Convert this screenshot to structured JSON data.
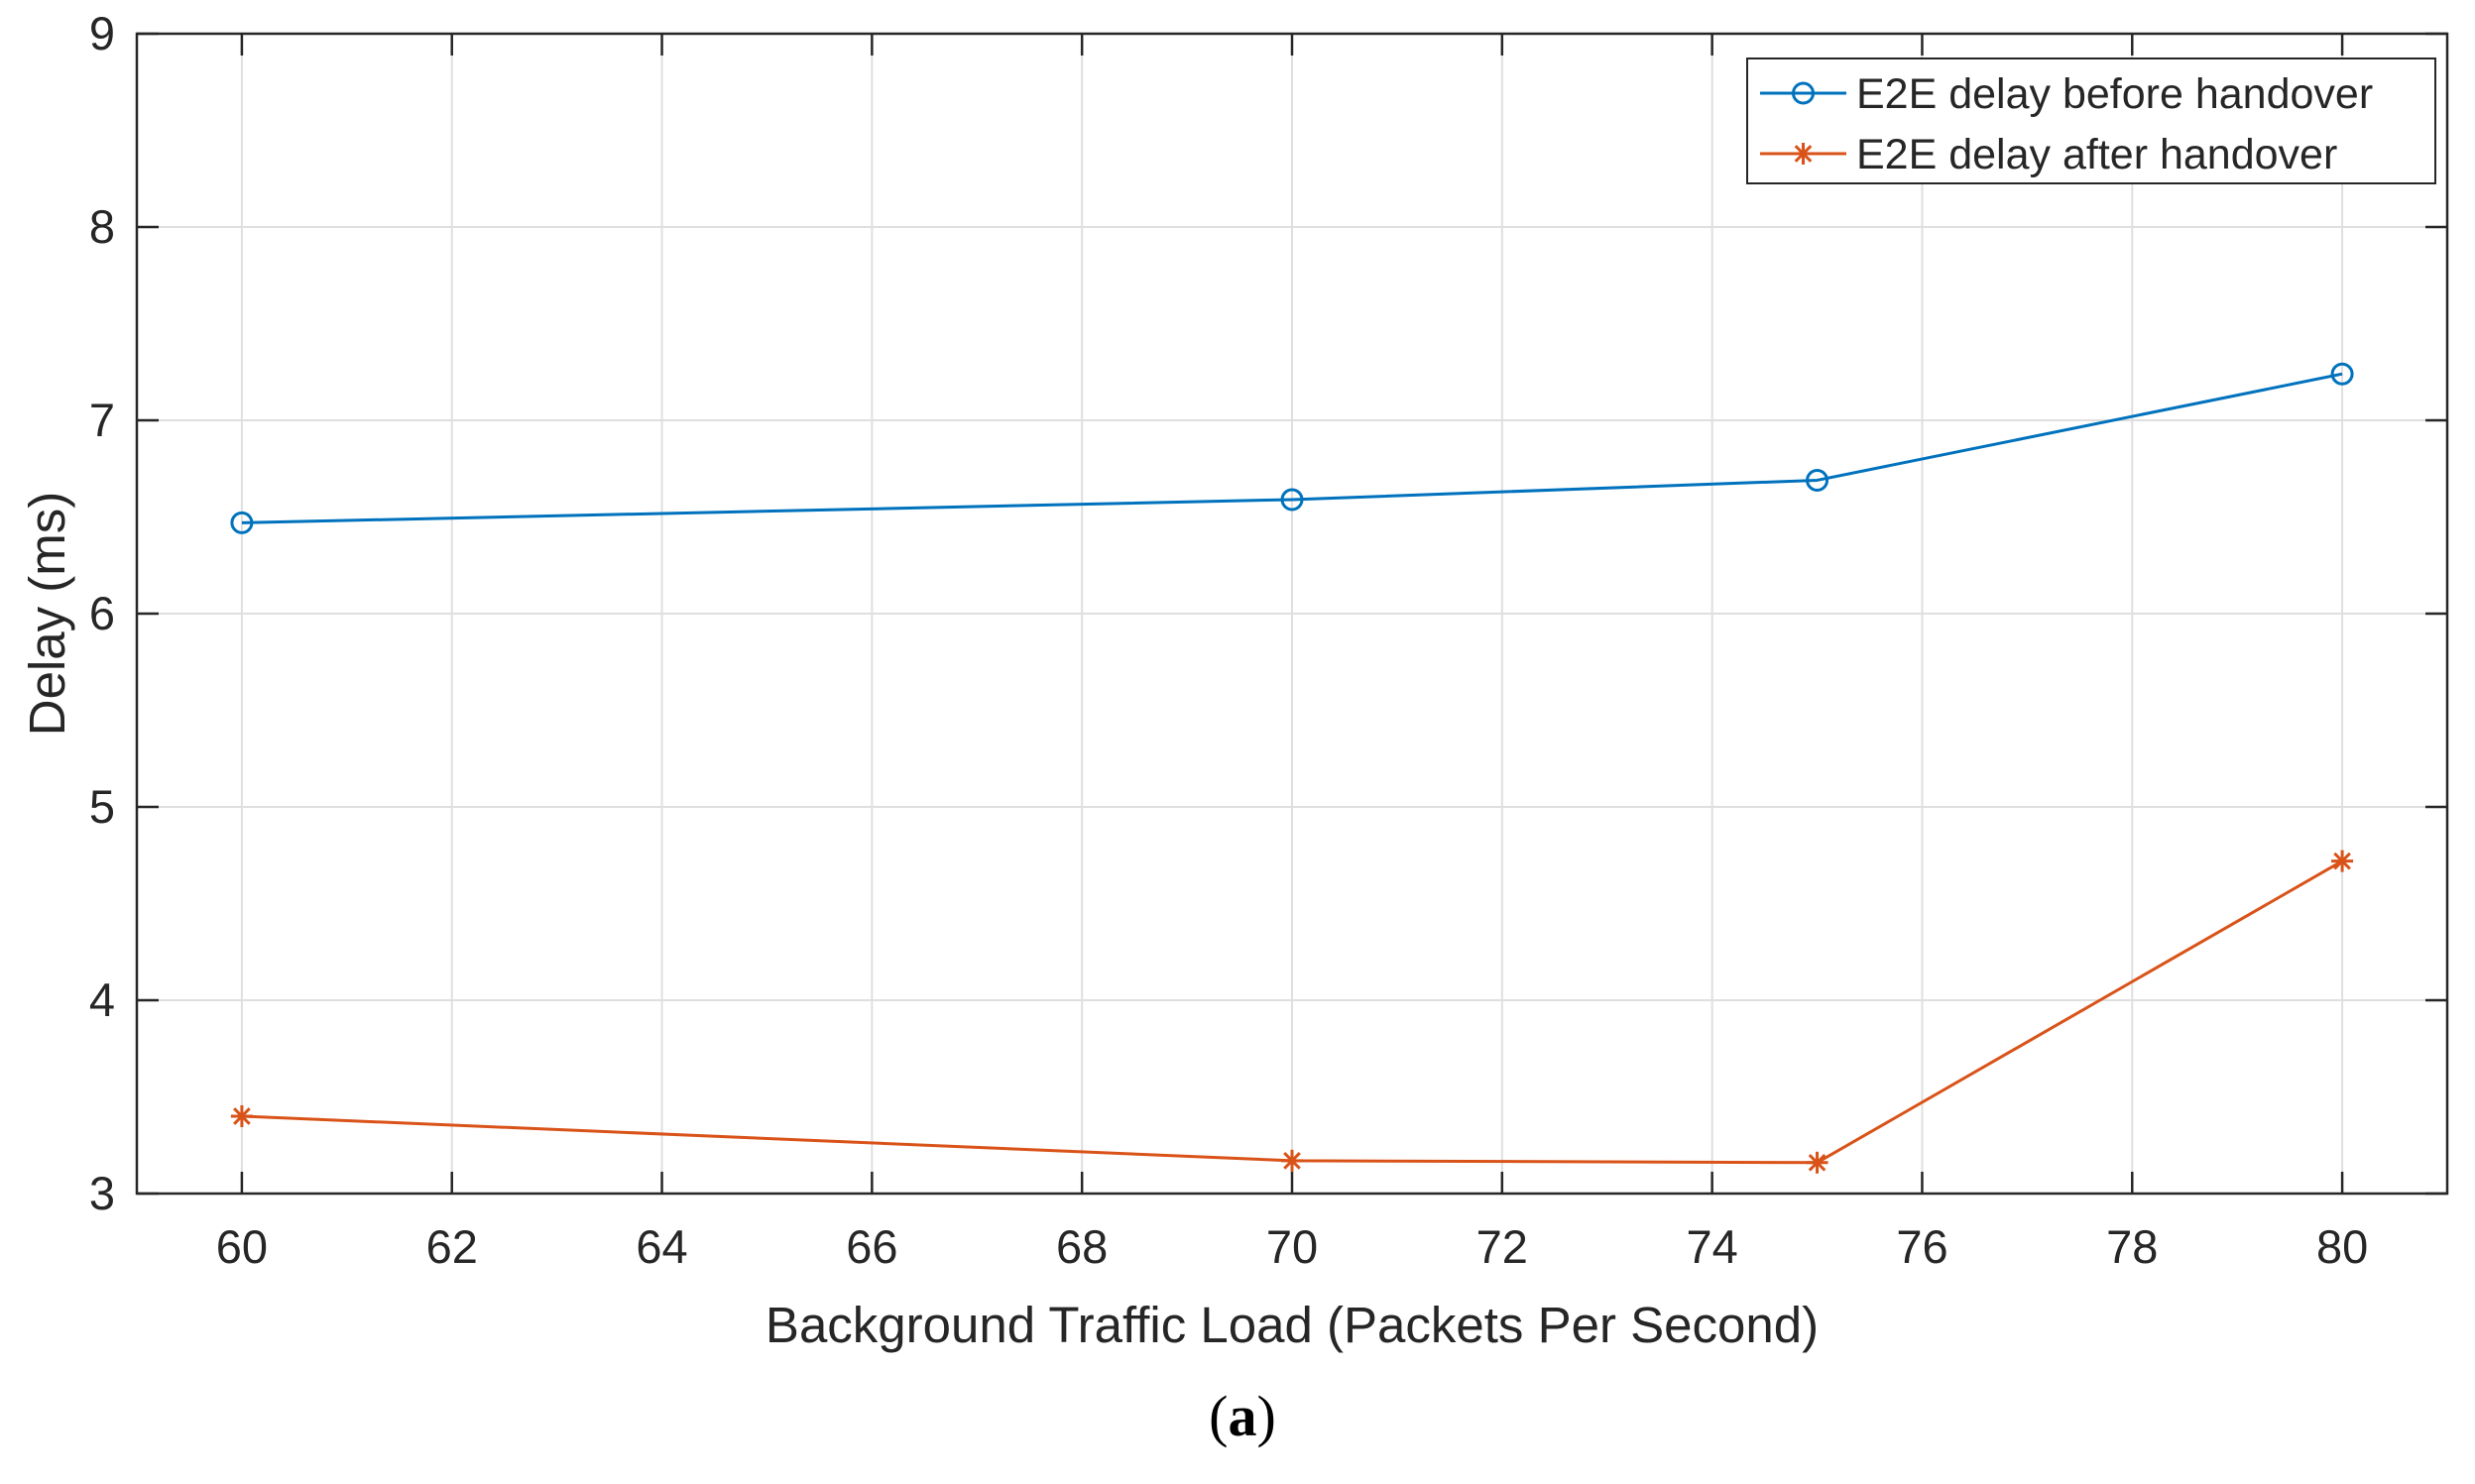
{
  "chart_data": {
    "type": "line",
    "title": "",
    "xlabel": "Background Traffic Load (Packets Per Second)",
    "ylabel": "Delay (ms)",
    "xlim": [
      59,
      81
    ],
    "ylim": [
      3,
      9
    ],
    "xticks": [
      60,
      62,
      64,
      66,
      68,
      70,
      72,
      74,
      76,
      78,
      80
    ],
    "yticks": [
      3,
      4,
      5,
      6,
      7,
      8,
      9
    ],
    "grid": true,
    "legend_position": "top-right",
    "x": [
      60,
      70,
      75,
      80
    ],
    "series": [
      {
        "name": "E2E delay before handover",
        "values": [
          6.47,
          6.59,
          6.69,
          7.24
        ],
        "color": "#0072BD",
        "marker": "circle"
      },
      {
        "name": "E2E delay after handover",
        "values": [
          3.4,
          3.17,
          3.16,
          4.72
        ],
        "color": "#D95319",
        "marker": "asterisk"
      }
    ]
  },
  "caption": {
    "open": "(",
    "letter": "a",
    "close": ")"
  }
}
